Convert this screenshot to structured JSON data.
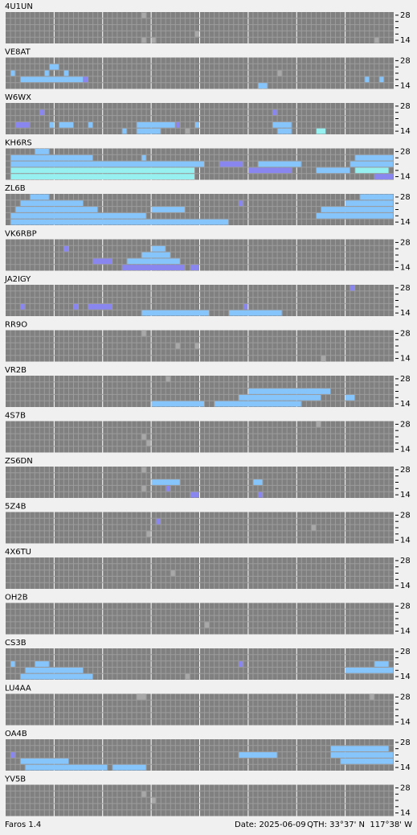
{
  "axis": {
    "top": "28",
    "bottom": "14"
  },
  "levels": [
    "#f0f0f0",
    "#a8a8a8",
    "#8a86f0",
    "#86c4fc",
    "#96f0f0"
  ],
  "stations": [
    {
      "name": "4U1UN",
      "spots": [
        [
          0,
          28,
          28,
          1
        ],
        [
          4,
          28,
          28,
          1
        ],
        [
          4,
          30,
          30,
          1
        ],
        [
          3,
          39,
          39,
          1
        ],
        [
          4,
          76,
          76,
          1
        ]
      ]
    },
    {
      "name": "VE8AT",
      "spots": [
        [
          2,
          1,
          1,
          3
        ],
        [
          2,
          8,
          8,
          3
        ],
        [
          3,
          3,
          15,
          3
        ],
        [
          1,
          9,
          10,
          3
        ],
        [
          2,
          12,
          12,
          3
        ],
        [
          3,
          16,
          16,
          2
        ],
        [
          4,
          52,
          53,
          3
        ],
        [
          2,
          56,
          56,
          1
        ],
        [
          3,
          74,
          74,
          3
        ],
        [
          3,
          77,
          77,
          3
        ]
      ]
    },
    {
      "name": "W6WX",
      "spots": [
        [
          1,
          7,
          7,
          2
        ],
        [
          3,
          2,
          4,
          2
        ],
        [
          3,
          9,
          9,
          3
        ],
        [
          3,
          11,
          13,
          3
        ],
        [
          3,
          17,
          17,
          3
        ],
        [
          4,
          24,
          24,
          3
        ],
        [
          3,
          27,
          34,
          3
        ],
        [
          4,
          27,
          31,
          3
        ],
        [
          3,
          35,
          35,
          2
        ],
        [
          4,
          37,
          37,
          1
        ],
        [
          3,
          39,
          39,
          3
        ],
        [
          1,
          55,
          55,
          2
        ],
        [
          3,
          55,
          58,
          3
        ],
        [
          4,
          56,
          58,
          3
        ],
        [
          4,
          64,
          65,
          4
        ]
      ]
    },
    {
      "name": "KH6RS",
      "spots": [
        [
          0,
          6,
          8,
          3
        ],
        [
          1,
          1,
          17,
          3
        ],
        [
          2,
          1,
          40,
          3
        ],
        [
          3,
          1,
          38,
          4
        ],
        [
          4,
          1,
          38,
          4
        ],
        [
          1,
          28,
          28,
          3
        ],
        [
          2,
          44,
          48,
          2
        ],
        [
          3,
          50,
          58,
          2
        ],
        [
          2,
          52,
          60,
          3
        ],
        [
          3,
          64,
          70,
          3
        ],
        [
          2,
          71,
          79,
          3
        ],
        [
          1,
          72,
          79,
          3
        ],
        [
          3,
          72,
          78,
          4
        ],
        [
          4,
          76,
          79,
          2
        ]
      ]
    },
    {
      "name": "ZL6B",
      "spots": [
        [
          0,
          5,
          8,
          3
        ],
        [
          1,
          3,
          15,
          3
        ],
        [
          2,
          2,
          18,
          3
        ],
        [
          3,
          1,
          28,
          3
        ],
        [
          4,
          1,
          45,
          3
        ],
        [
          2,
          30,
          36,
          3
        ],
        [
          1,
          48,
          48,
          2
        ],
        [
          2,
          65,
          79,
          3
        ],
        [
          1,
          70,
          79,
          3
        ],
        [
          0,
          73,
          79,
          3
        ],
        [
          3,
          64,
          79,
          3
        ]
      ]
    },
    {
      "name": "VK6RBP",
      "spots": [
        [
          1,
          12,
          12,
          2
        ],
        [
          3,
          18,
          21,
          2
        ],
        [
          3,
          25,
          35,
          3
        ],
        [
          2,
          28,
          33,
          3
        ],
        [
          1,
          30,
          32,
          3
        ],
        [
          4,
          24,
          36,
          2
        ],
        [
          4,
          38,
          39,
          2
        ]
      ]
    },
    {
      "name": "JA2IGY",
      "spots": [
        [
          0,
          71,
          71,
          2
        ],
        [
          3,
          3,
          3,
          2
        ],
        [
          3,
          14,
          14,
          2
        ],
        [
          3,
          17,
          21,
          2
        ],
        [
          4,
          28,
          41,
          3
        ],
        [
          4,
          46,
          56,
          3
        ],
        [
          3,
          49,
          49,
          2
        ]
      ]
    },
    {
      "name": "RR9O",
      "spots": [
        [
          0,
          28,
          28,
          1
        ],
        [
          2,
          39,
          39,
          1
        ],
        [
          2,
          35,
          35,
          1
        ],
        [
          4,
          65,
          65,
          1
        ]
      ]
    },
    {
      "name": "VR2B",
      "spots": [
        [
          0,
          33,
          33,
          1
        ],
        [
          2,
          50,
          66,
          3
        ],
        [
          3,
          48,
          64,
          3
        ],
        [
          4,
          30,
          40,
          3
        ],
        [
          4,
          43,
          60,
          3
        ],
        [
          2,
          62,
          64,
          3
        ],
        [
          3,
          70,
          71,
          3
        ]
      ]
    },
    {
      "name": "4S7B",
      "spots": [
        [
          0,
          64,
          64,
          1
        ],
        [
          2,
          28,
          28,
          1
        ],
        [
          3,
          29,
          29,
          1
        ]
      ]
    },
    {
      "name": "ZS6DN",
      "spots": [
        [
          0,
          28,
          28,
          1
        ],
        [
          2,
          30,
          35,
          3
        ],
        [
          3,
          33,
          33,
          2
        ],
        [
          4,
          38,
          39,
          2
        ],
        [
          2,
          51,
          52,
          3
        ],
        [
          4,
          52,
          52,
          2
        ],
        [
          3,
          28,
          28,
          1
        ]
      ]
    },
    {
      "name": "5Z4B",
      "spots": [
        [
          1,
          31,
          31,
          2
        ],
        [
          3,
          29,
          29,
          1
        ],
        [
          2,
          63,
          63,
          1
        ]
      ]
    },
    {
      "name": "4X6TU",
      "spots": [
        [
          2,
          34,
          34,
          1
        ]
      ]
    },
    {
      "name": "OH2B",
      "spots": [
        [
          3,
          41,
          41,
          1
        ]
      ]
    },
    {
      "name": "CS3B",
      "spots": [
        [
          2,
          1,
          1,
          3
        ],
        [
          3,
          4,
          15,
          3
        ],
        [
          4,
          3,
          17,
          3
        ],
        [
          2,
          6,
          8,
          3
        ],
        [
          2,
          48,
          48,
          2
        ],
        [
          3,
          70,
          79,
          3
        ],
        [
          2,
          76,
          78,
          3
        ],
        [
          4,
          37,
          37,
          1
        ]
      ]
    },
    {
      "name": "LU4AA",
      "spots": [
        [
          0,
          27,
          28,
          1
        ],
        [
          0,
          75,
          75,
          1
        ]
      ]
    },
    {
      "name": "OA4B",
      "spots": [
        [
          2,
          1,
          1,
          2
        ],
        [
          3,
          3,
          12,
          3
        ],
        [
          4,
          4,
          20,
          3
        ],
        [
          1,
          67,
          78,
          3
        ],
        [
          2,
          67,
          79,
          3
        ],
        [
          3,
          69,
          79,
          3
        ],
        [
          2,
          48,
          55,
          3
        ],
        [
          4,
          22,
          28,
          3
        ]
      ]
    },
    {
      "name": "YV5B",
      "spots": [
        [
          1,
          28,
          28,
          1
        ],
        [
          2,
          30,
          30,
          1
        ]
      ]
    }
  ],
  "footer": {
    "app": "Faros 1.4",
    "date": "Date: 2025-06-09",
    "qth": "QTH: 33°37' N  117°38' W"
  }
}
